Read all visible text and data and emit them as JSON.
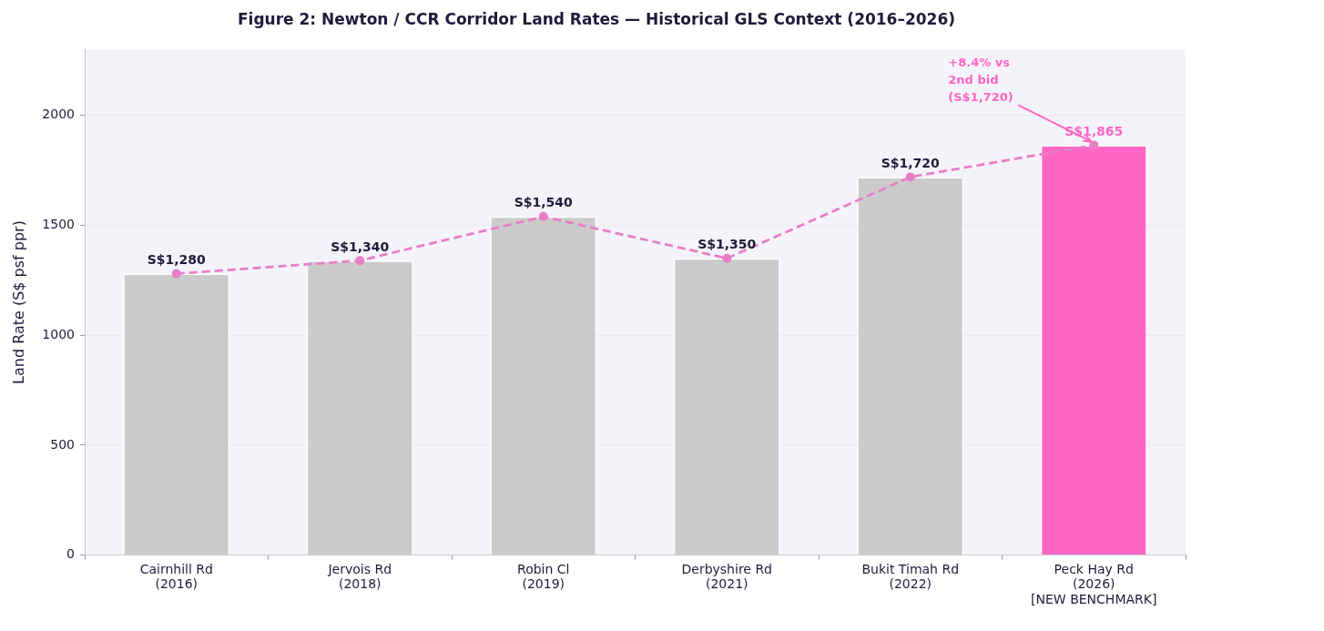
{
  "chart_data": {
    "type": "bar",
    "title": "Figure 2: Newton / CCR Corridor Land Rates — Historical GLS Context (2016–2026)",
    "ylabel": "Land Rate (S$ psf ppr)",
    "categories": [
      "Cairnhill Rd\n(2016)",
      "Jervois Rd\n(2018)",
      "Robin Cl\n(2019)",
      "Derbyshire Rd\n(2021)",
      "Bukit Timah Rd\n(2022)",
      "Peck Hay Rd\n(2026)\n[NEW BENCHMARK]"
    ],
    "series": [
      {
        "colors": [
          "#cbcbcb",
          "#cbcbcb",
          "#cbcbcb",
          "#cbcbcb",
          "#cbcbcb",
          "#ff66c4"
        ],
        "values": [
          1280,
          1340,
          1540,
          1350,
          1720,
          1865
        ],
        "value_labels": [
          "S$1,280",
          "S$1,340",
          "S$1,540",
          "S$1,350",
          "S$1,720",
          "S$1,865"
        ]
      },
      {
        "type": "line",
        "color": "#e67fc6",
        "values": [
          1280,
          1340,
          1540,
          1350,
          1720,
          1865
        ]
      }
    ],
    "ylim": [
      0,
      2300
    ],
    "yticks": [
      0,
      500,
      1000,
      1500,
      2000
    ],
    "grid": "y",
    "marker": "circle",
    "line_style": "dashed",
    "annotations": [
      {
        "text": "+8.4% vs\n2nd bid\n(S$1,720)",
        "x": "Peck Hay Rd\n(2026)\n[NEW BENCHMARK]",
        "y": 1865
      }
    ]
  }
}
